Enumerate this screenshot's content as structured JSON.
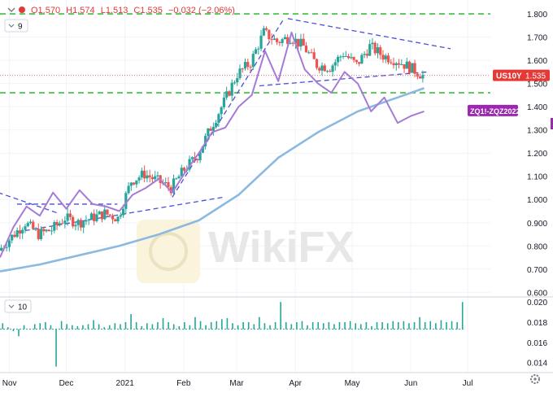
{
  "header": {
    "ohlc": {
      "open": "O1.570",
      "high": "H1.574",
      "low": "L1.513",
      "close": "C1.535",
      "change": "−0.032 (−2.06%)"
    },
    "study_value": "9",
    "volume_study_value": "10"
  },
  "colors": {
    "background": "#ffffff",
    "grid": "#f0f3fa",
    "candle_up": "#26a69a",
    "candle_down": "#ef5350",
    "spread_line": "#a67bd6",
    "ma_line": "#8bb9e0",
    "trendline": "#4b4fd6",
    "level_line": "#3cbe3c",
    "price_dotted": "#e57373",
    "label_us10y": "#e53935",
    "label_spread": "#9c27b0",
    "volume_bar": "#26a69a",
    "watermark": "#e7e7e7"
  },
  "icons": {
    "collapse": "chevron-down-icon",
    "settings": "gear-icon",
    "watermark": "wikifx-logo-icon"
  },
  "watermark_text": "WikiFX",
  "chart_data": {
    "type": "line",
    "series": [
      {
        "name": "US10Y",
        "type": "candlestick",
        "last_label": "1.535",
        "x": [
          "2020-10-27",
          "2020-11-03",
          "2020-11-10",
          "2020-11-17",
          "2020-11-24",
          "2020-12-01",
          "2020-12-08",
          "2020-12-15",
          "2020-12-22",
          "2020-12-29",
          "2021-01-05",
          "2021-01-12",
          "2021-01-19",
          "2021-01-26",
          "2021-02-02",
          "2021-02-09",
          "2021-02-16",
          "2021-02-23",
          "2021-03-02",
          "2021-03-09",
          "2021-03-16",
          "2021-03-23",
          "2021-03-30",
          "2021-04-06",
          "2021-04-13",
          "2021-04-20",
          "2021-04-27",
          "2021-05-04",
          "2021-05-11",
          "2021-05-18",
          "2021-05-25",
          "2021-06-01",
          "2021-06-08"
        ],
        "close": [
          0.78,
          0.84,
          0.9,
          0.85,
          0.87,
          0.92,
          0.9,
          0.92,
          0.94,
          0.92,
          1.08,
          1.11,
          1.08,
          1.05,
          1.13,
          1.19,
          1.31,
          1.42,
          1.54,
          1.59,
          1.72,
          1.68,
          1.7,
          1.66,
          1.58,
          1.57,
          1.63,
          1.58,
          1.66,
          1.62,
          1.6,
          1.57,
          1.535
        ]
      },
      {
        "name": "ZQ1!-ZQZ2022",
        "type": "line",
        "x": [
          "2020-10-27",
          "2020-11-03",
          "2020-11-10",
          "2020-11-17",
          "2020-11-24",
          "2020-12-01",
          "2020-12-08",
          "2020-12-15",
          "2020-12-22",
          "2020-12-29",
          "2021-01-05",
          "2021-01-12",
          "2021-01-19",
          "2021-01-26",
          "2021-02-02",
          "2021-02-09",
          "2021-02-16",
          "2021-02-23",
          "2021-03-02",
          "2021-03-09",
          "2021-03-16",
          "2021-03-23",
          "2021-03-30",
          "2021-04-06",
          "2021-04-13",
          "2021-04-20",
          "2021-04-27",
          "2021-05-04",
          "2021-05-11",
          "2021-05-18",
          "2021-05-25",
          "2021-06-01",
          "2021-06-08"
        ],
        "values": [
          0.75,
          0.88,
          0.97,
          0.93,
          1.03,
          0.96,
          1.04,
          0.98,
          0.97,
          0.95,
          1.02,
          1.05,
          1.09,
          1.03,
          1.12,
          1.2,
          1.29,
          1.31,
          1.4,
          1.45,
          1.64,
          1.51,
          1.72,
          1.56,
          1.5,
          1.46,
          1.55,
          1.5,
          1.38,
          1.44,
          1.33,
          1.36,
          1.38
        ]
      },
      {
        "name": "Moving average",
        "type": "line",
        "x": [
          "2020-10-27",
          "2020-11-17",
          "2020-12-08",
          "2020-12-29",
          "2021-01-19",
          "2021-02-09",
          "2021-03-02",
          "2021-03-23",
          "2021-04-13",
          "2021-05-04",
          "2021-05-25",
          "2021-06-08"
        ],
        "values": [
          0.69,
          0.72,
          0.76,
          0.8,
          0.85,
          0.91,
          1.02,
          1.18,
          1.29,
          1.38,
          1.44,
          1.48
        ]
      }
    ],
    "levels": [
      1.8,
      1.46
    ],
    "trendlines": [
      {
        "from": [
          "2020-10-26",
          1.03
        ],
        "to": [
          "2020-11-27",
          0.94
        ]
      },
      {
        "from": [
          "2020-11-05",
          0.98
        ],
        "to": [
          "2020-12-28",
          0.98
        ]
      },
      {
        "from": [
          "2020-11-05",
          0.86
        ],
        "to": [
          "2021-02-22",
          1.01
        ]
      },
      {
        "from": [
          "2021-01-26",
          1.01
        ],
        "to": [
          "2021-03-26",
          1.78
        ]
      },
      {
        "from": [
          "2021-03-13",
          1.49
        ],
        "to": [
          "2021-06-10",
          1.55
        ]
      },
      {
        "from": [
          "2021-03-28",
          1.78
        ],
        "to": [
          "2021-06-22",
          1.65
        ]
      }
    ],
    "volume": {
      "values": [
        0.0179,
        0.0175,
        0.0171,
        0.0166,
        0.0177,
        0.0173,
        0.0178,
        0.0179,
        0.018,
        0.0177,
        0.0136,
        0.0181,
        0.0178,
        0.0177,
        0.0176,
        0.0177,
        0.0178,
        0.0182,
        0.0178,
        0.0175,
        0.0177,
        0.0179,
        0.0178,
        0.018,
        0.0188,
        0.018,
        0.0176,
        0.0179,
        0.0178,
        0.018,
        0.0184,
        0.018,
        0.0178,
        0.0176,
        0.018,
        0.0177,
        0.0185,
        0.0181,
        0.0177,
        0.018,
        0.0181,
        0.0183,
        0.0184,
        0.0179,
        0.0177,
        0.018,
        0.018,
        0.0178,
        0.0185,
        0.0179,
        0.0177,
        0.018,
        0.02,
        0.018,
        0.0178,
        0.018,
        0.0181,
        0.0177,
        0.018,
        0.018,
        0.0179,
        0.018,
        0.0178,
        0.018,
        0.018,
        0.0181,
        0.0179,
        0.0178,
        0.018,
        0.0176,
        0.018,
        0.018,
        0.0179,
        0.0181,
        0.018,
        0.0181,
        0.0179,
        0.018,
        0.0185,
        0.018,
        0.0181,
        0.0179,
        0.0182,
        0.018,
        0.0181,
        0.018,
        0.02
      ],
      "baseline": 0.0173,
      "ylim": [
        0.013,
        0.0205
      ],
      "y_ticks": [
        "0.020",
        "0.018",
        "0.016",
        "0.014"
      ]
    },
    "x_ticks": [
      "Nov",
      "Dec",
      "2021",
      "Feb",
      "Mar",
      "Apr",
      "May",
      "Jun",
      "Jul"
    ],
    "x_tick_dates": [
      "2020-11-01",
      "2020-12-01",
      "2021-01-01",
      "2021-02-01",
      "2021-03-01",
      "2021-04-01",
      "2021-05-01",
      "2021-06-01",
      "2021-07-01"
    ],
    "xlim": [
      "2020-10-27",
      "2021-07-13"
    ],
    "y_ticks": [
      "1.800",
      "1.700",
      "1.600",
      "1.500",
      "1.400",
      "1.300",
      "1.200",
      "1.100",
      "1.000",
      "0.900",
      "0.800",
      "0.700",
      "0.600"
    ],
    "ylim": [
      0.58,
      1.86
    ],
    "labels": {
      "us10y": "US10Y",
      "us10y_value": "1.535",
      "spread": "ZQ1!-ZQZ2022"
    },
    "grid": true
  }
}
